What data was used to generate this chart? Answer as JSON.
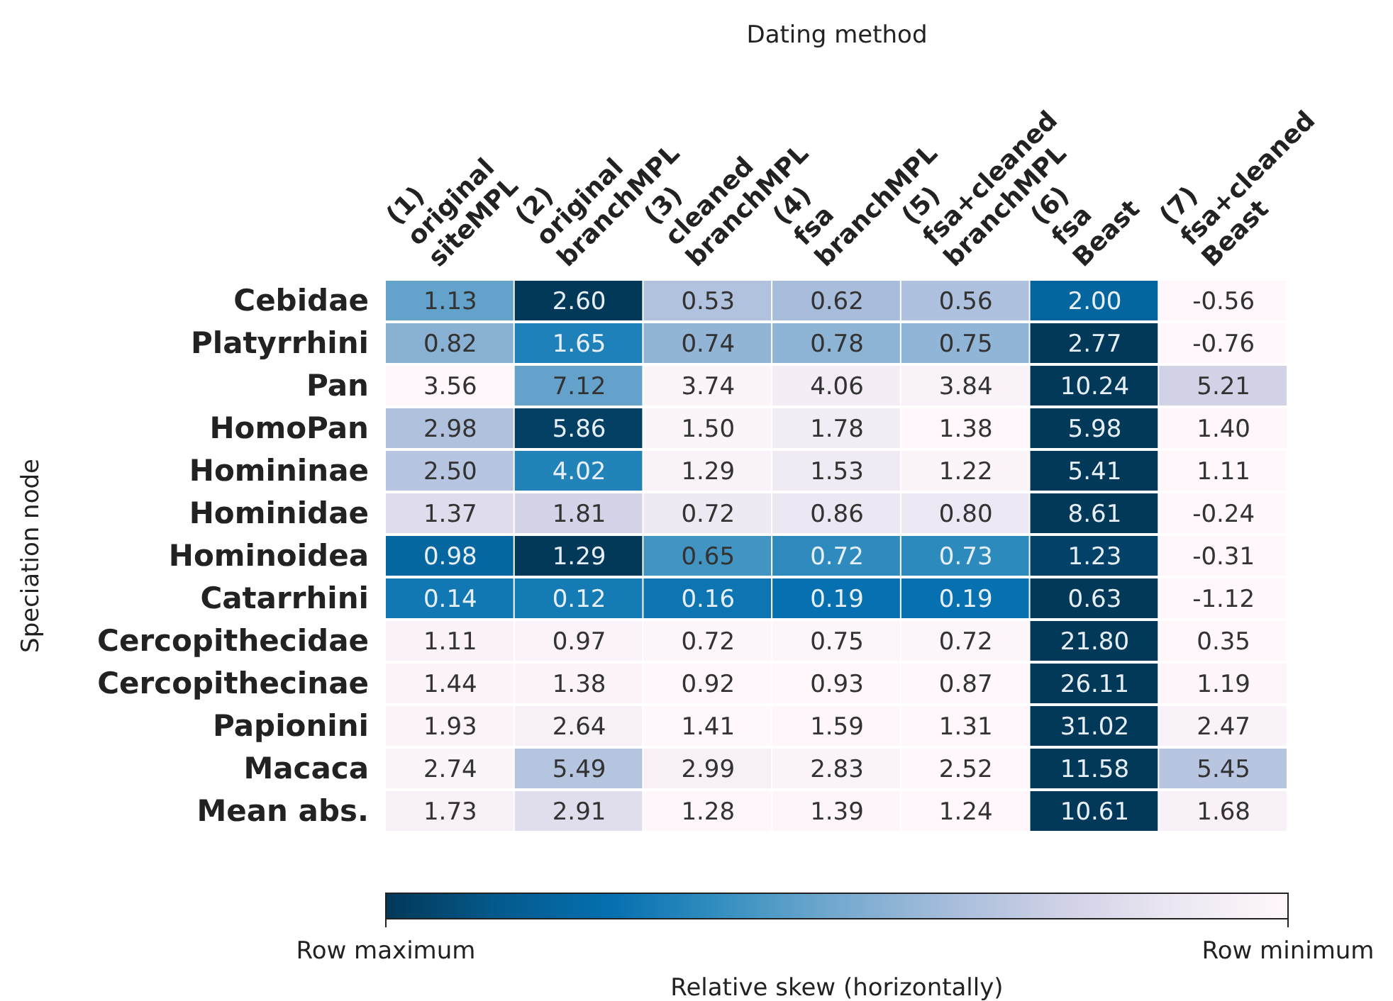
{
  "chart_data": {
    "type": "heatmap",
    "xlabel": "Dating method",
    "ylabel": "Speciation node",
    "clabel": "Relative skew (horizontally)",
    "categories": [
      "(1)\noriginal\nsiteMPL",
      "(2)\noriginal\nbranchMPL",
      "(3)\ncleaned\nbranchMPL",
      "(4)\nfsa\nbranchMPL",
      "(5)\nfsa+cleaned\nbranchMPL",
      "(6)\nfsa\nBeast",
      "(7)\nfsa+cleaned\nBeast"
    ],
    "y_categories": [
      "Cebidae",
      "Platyrrhini",
      "Pan",
      "HomoPan",
      "Homininae",
      "Hominidae",
      "Hominoidea",
      "Catarrhini",
      "Cercopithecidae",
      "Cercopithecinae",
      "Papionini",
      "Macaca",
      "Mean abs."
    ],
    "cells": [
      [
        1.13,
        2.6,
        0.53,
        0.62,
        0.56,
        2.0,
        -0.56
      ],
      [
        0.82,
        1.65,
        0.74,
        0.78,
        0.75,
        2.77,
        -0.76
      ],
      [
        3.56,
        7.12,
        3.74,
        4.06,
        3.84,
        10.24,
        5.21
      ],
      [
        2.98,
        5.86,
        1.5,
        1.78,
        1.38,
        5.98,
        1.4
      ],
      [
        2.5,
        4.02,
        1.29,
        1.53,
        1.22,
        5.41,
        1.11
      ],
      [
        1.37,
        1.81,
        0.72,
        0.86,
        0.8,
        8.61,
        -0.24
      ],
      [
        0.98,
        1.29,
        0.65,
        0.72,
        0.73,
        1.23,
        -0.31
      ],
      [
        0.14,
        0.12,
        0.16,
        0.19,
        0.19,
        0.63,
        -1.12
      ],
      [
        1.11,
        0.97,
        0.72,
        0.75,
        0.72,
        21.8,
        0.35
      ],
      [
        1.44,
        1.38,
        0.92,
        0.93,
        0.87,
        26.11,
        1.19
      ],
      [
        1.93,
        2.64,
        1.41,
        1.59,
        1.31,
        31.02,
        2.47
      ],
      [
        2.74,
        5.49,
        2.99,
        2.83,
        2.52,
        11.58,
        5.45
      ],
      [
        1.73,
        2.91,
        1.28,
        1.39,
        1.24,
        10.61,
        1.68
      ]
    ],
    "cell_labels": [
      [
        "1.13",
        "2.60",
        "0.53",
        "0.62",
        "0.56",
        "2.00",
        "-0.56"
      ],
      [
        "0.82",
        "1.65",
        "0.74",
        "0.78",
        "0.75",
        "2.77",
        "-0.76"
      ],
      [
        "3.56",
        "7.12",
        "3.74",
        "4.06",
        "3.84",
        "10.24",
        "5.21"
      ],
      [
        "2.98",
        "5.86",
        "1.50",
        "1.78",
        "1.38",
        "5.98",
        "1.40"
      ],
      [
        "2.50",
        "4.02",
        "1.29",
        "1.53",
        "1.22",
        "5.41",
        "1.11"
      ],
      [
        "1.37",
        "1.81",
        "0.72",
        "0.86",
        "0.80",
        "8.61",
        "-0.24"
      ],
      [
        "0.98",
        "1.29",
        "0.65",
        "0.72",
        "0.73",
        "1.23",
        "-0.31"
      ],
      [
        "0.14",
        "0.12",
        "0.16",
        "0.19",
        "0.19",
        "0.63",
        "-1.12"
      ],
      [
        "1.11",
        "0.97",
        "0.72",
        "0.75",
        "0.72",
        "21.80",
        "0.35"
      ],
      [
        "1.44",
        "1.38",
        "0.92",
        "0.93",
        "0.87",
        "26.11",
        "1.19"
      ],
      [
        "1.93",
        "2.64",
        "1.41",
        "1.59",
        "1.31",
        "31.02",
        "2.47"
      ],
      [
        "2.74",
        "5.49",
        "2.99",
        "2.83",
        "2.52",
        "11.58",
        "5.45"
      ],
      [
        "1.73",
        "2.91",
        "1.28",
        "1.39",
        "1.24",
        "10.61",
        "1.68"
      ]
    ],
    "annotations": [
      "Row maximum",
      "Row minimum"
    ]
  }
}
